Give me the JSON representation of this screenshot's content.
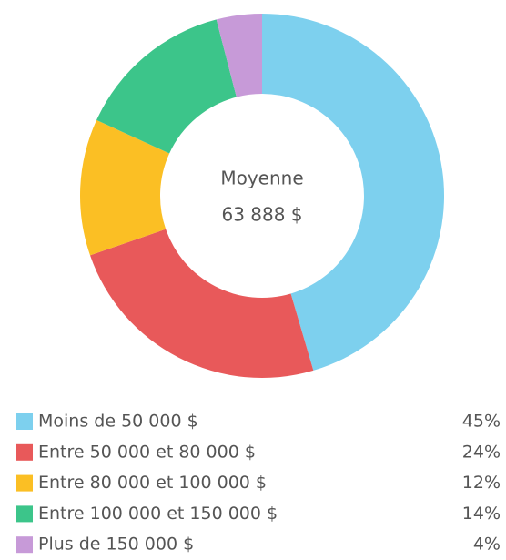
{
  "chart_data": {
    "type": "pie",
    "center_text": [
      "Moyenne",
      "63 888 $"
    ],
    "categories": [
      "Moins de 50 000 $",
      "Entre 50 000 et 80 000 $",
      "Entre 80 000 et 100 000 $",
      "Entre 100 000 et 150 000 $",
      "Plus de 150 000 $"
    ],
    "values": [
      45,
      24,
      12,
      14,
      4
    ],
    "value_labels": [
      "45%",
      "24%",
      "12%",
      "14%",
      "4%"
    ],
    "colors": [
      "#7dd0ee",
      "#e8595a",
      "#fbbf24",
      "#3cc58a",
      "#c79ad8"
    ]
  }
}
